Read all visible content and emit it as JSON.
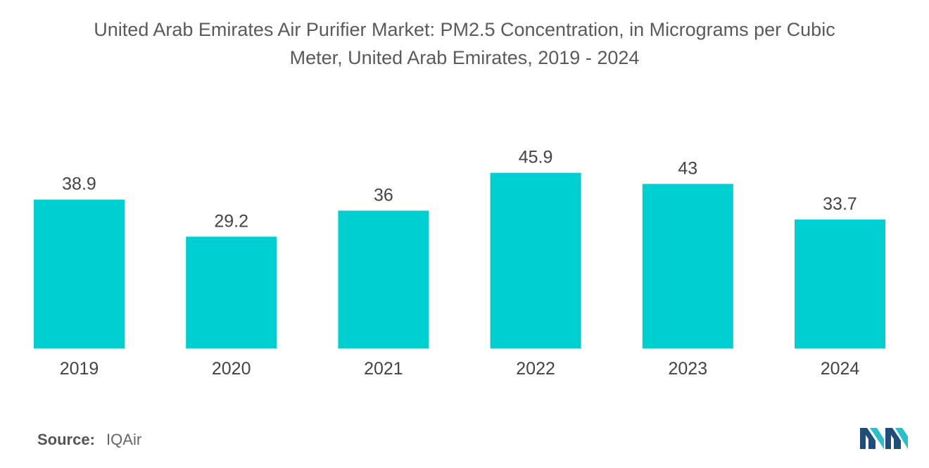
{
  "title_lines": [
    "United Arab Emirates Air Purifier Market: PM2.5 Concentration, in Micrograms per Cubic",
    "Meter, United Arab Emirates, 2019 - 2024"
  ],
  "source": {
    "label": "Source:",
    "value": "IQAir"
  },
  "colors": {
    "bar": "#00cfd1",
    "text": "#444444",
    "logo_dark": "#1f4e79",
    "logo_light": "#2bbfc8"
  },
  "chart_data": {
    "type": "bar",
    "title": "United Arab Emirates Air Purifier Market: PM2.5 Concentration, in Micrograms per Cubic Meter, United Arab Emirates, 2019 - 2024",
    "categories": [
      "2019",
      "2020",
      "2021",
      "2022",
      "2023",
      "2024"
    ],
    "values": [
      38.9,
      29.2,
      36,
      45.9,
      43,
      33.7
    ],
    "value_labels": [
      "38.9",
      "29.2",
      "36",
      "45.9",
      "43",
      "33.7"
    ],
    "xlabel": "",
    "ylabel": "",
    "ylim": [
      0,
      46
    ],
    "grid": false,
    "legend": "none"
  }
}
